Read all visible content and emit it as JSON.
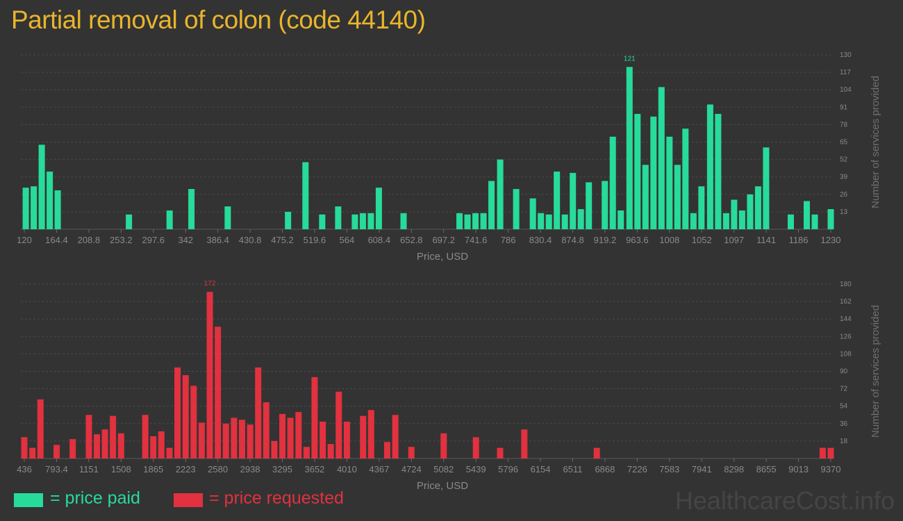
{
  "title": "Partial removal of colon (code 44140)",
  "watermark": "HealthcareCost.info",
  "legend": [
    {
      "label": "= price paid",
      "color": "#27db9b"
    },
    {
      "label": "= price requested",
      "color": "#e2313f"
    }
  ],
  "chart_data": [
    {
      "type": "bar",
      "title": "",
      "xlabel": "Price, USD",
      "ylabel": "Number of services provided",
      "color": "#27db9b",
      "ylim": [
        0,
        130
      ],
      "yticks": [
        "13",
        "26",
        "39",
        "52",
        "65",
        "78",
        "91",
        "104",
        "117",
        "130"
      ],
      "xlim": [
        120,
        1230
      ],
      "xticks": [
        "120",
        "164.4",
        "208.8",
        "253.2",
        "297.6",
        "342",
        "386.4",
        "430.8",
        "475.2",
        "519.6",
        "564",
        "608.4",
        "652.8",
        "697.2",
        "741.6",
        "786",
        "830.4",
        "874.8",
        "919.2",
        "963.6",
        "1008",
        "1052",
        "1097",
        "1141",
        "1186",
        "1230"
      ],
      "peak_label": "121",
      "bars": [
        {
          "x": 122,
          "v": 31
        },
        {
          "x": 133,
          "v": 32
        },
        {
          "x": 144,
          "v": 63
        },
        {
          "x": 155,
          "v": 43
        },
        {
          "x": 166,
          "v": 29
        },
        {
          "x": 264,
          "v": 11
        },
        {
          "x": 320,
          "v": 14
        },
        {
          "x": 350,
          "v": 30
        },
        {
          "x": 400,
          "v": 17
        },
        {
          "x": 483,
          "v": 13
        },
        {
          "x": 507,
          "v": 50
        },
        {
          "x": 530,
          "v": 11
        },
        {
          "x": 552,
          "v": 17
        },
        {
          "x": 575,
          "v": 11
        },
        {
          "x": 586,
          "v": 12
        },
        {
          "x": 597,
          "v": 12
        },
        {
          "x": 608,
          "v": 31
        },
        {
          "x": 642,
          "v": 12
        },
        {
          "x": 719,
          "v": 12
        },
        {
          "x": 730,
          "v": 11
        },
        {
          "x": 741,
          "v": 12
        },
        {
          "x": 752,
          "v": 12
        },
        {
          "x": 763,
          "v": 36
        },
        {
          "x": 775,
          "v": 52
        },
        {
          "x": 797,
          "v": 30
        },
        {
          "x": 820,
          "v": 23
        },
        {
          "x": 831,
          "v": 12
        },
        {
          "x": 842,
          "v": 11
        },
        {
          "x": 853,
          "v": 43
        },
        {
          "x": 864,
          "v": 11
        },
        {
          "x": 875,
          "v": 42
        },
        {
          "x": 886,
          "v": 15
        },
        {
          "x": 897,
          "v": 35
        },
        {
          "x": 919,
          "v": 36
        },
        {
          "x": 930,
          "v": 69
        },
        {
          "x": 941,
          "v": 14
        },
        {
          "x": 953,
          "v": 121
        },
        {
          "x": 964,
          "v": 86
        },
        {
          "x": 975,
          "v": 48
        },
        {
          "x": 986,
          "v": 84
        },
        {
          "x": 997,
          "v": 106
        },
        {
          "x": 1008,
          "v": 69
        },
        {
          "x": 1019,
          "v": 48
        },
        {
          "x": 1030,
          "v": 75
        },
        {
          "x": 1041,
          "v": 12
        },
        {
          "x": 1052,
          "v": 32
        },
        {
          "x": 1064,
          "v": 93
        },
        {
          "x": 1075,
          "v": 86
        },
        {
          "x": 1086,
          "v": 12
        },
        {
          "x": 1097,
          "v": 22
        },
        {
          "x": 1108,
          "v": 14
        },
        {
          "x": 1119,
          "v": 26
        },
        {
          "x": 1130,
          "v": 32
        },
        {
          "x": 1141,
          "v": 61
        },
        {
          "x": 1175,
          "v": 11
        },
        {
          "x": 1197,
          "v": 21
        },
        {
          "x": 1208,
          "v": 11
        },
        {
          "x": 1230,
          "v": 15
        }
      ]
    },
    {
      "type": "bar",
      "title": "",
      "xlabel": "Price, USD",
      "ylabel": "Number of services provided",
      "color": "#e2313f",
      "ylim": [
        0,
        180
      ],
      "yticks": [
        "18",
        "36",
        "54",
        "72",
        "90",
        "108",
        "126",
        "144",
        "162",
        "180"
      ],
      "xlim": [
        436,
        9370
      ],
      "xticks": [
        "436",
        "793.4",
        "1151",
        "1508",
        "1865",
        "2223",
        "2580",
        "2938",
        "3295",
        "3652",
        "4010",
        "4367",
        "4724",
        "5082",
        "5439",
        "5796",
        "6154",
        "6511",
        "6868",
        "7226",
        "7583",
        "7941",
        "8298",
        "8655",
        "9013",
        "9370"
      ],
      "peak_label": "172",
      "bars": [
        {
          "x": 436,
          "v": 22
        },
        {
          "x": 526,
          "v": 11
        },
        {
          "x": 615,
          "v": 61
        },
        {
          "x": 794,
          "v": 14
        },
        {
          "x": 972,
          "v": 20
        },
        {
          "x": 1151,
          "v": 45
        },
        {
          "x": 1240,
          "v": 25
        },
        {
          "x": 1329,
          "v": 30
        },
        {
          "x": 1418,
          "v": 44
        },
        {
          "x": 1508,
          "v": 26
        },
        {
          "x": 1776,
          "v": 45
        },
        {
          "x": 1865,
          "v": 23
        },
        {
          "x": 1954,
          "v": 28
        },
        {
          "x": 2044,
          "v": 11
        },
        {
          "x": 2133,
          "v": 94
        },
        {
          "x": 2223,
          "v": 86
        },
        {
          "x": 2312,
          "v": 75
        },
        {
          "x": 2401,
          "v": 37
        },
        {
          "x": 2491,
          "v": 172
        },
        {
          "x": 2580,
          "v": 136
        },
        {
          "x": 2669,
          "v": 36
        },
        {
          "x": 2759,
          "v": 42
        },
        {
          "x": 2848,
          "v": 40
        },
        {
          "x": 2938,
          "v": 35
        },
        {
          "x": 3027,
          "v": 94
        },
        {
          "x": 3116,
          "v": 58
        },
        {
          "x": 3206,
          "v": 18
        },
        {
          "x": 3295,
          "v": 46
        },
        {
          "x": 3384,
          "v": 42
        },
        {
          "x": 3474,
          "v": 48
        },
        {
          "x": 3563,
          "v": 12
        },
        {
          "x": 3652,
          "v": 84
        },
        {
          "x": 3742,
          "v": 38
        },
        {
          "x": 3831,
          "v": 15
        },
        {
          "x": 3920,
          "v": 69
        },
        {
          "x": 4010,
          "v": 38
        },
        {
          "x": 4189,
          "v": 44
        },
        {
          "x": 4278,
          "v": 50
        },
        {
          "x": 4456,
          "v": 17
        },
        {
          "x": 4546,
          "v": 45
        },
        {
          "x": 4724,
          "v": 12
        },
        {
          "x": 5082,
          "v": 26
        },
        {
          "x": 5439,
          "v": 22
        },
        {
          "x": 5707,
          "v": 11
        },
        {
          "x": 5975,
          "v": 30
        },
        {
          "x": 6778,
          "v": 11
        },
        {
          "x": 9281,
          "v": 11
        },
        {
          "x": 9370,
          "v": 11
        }
      ]
    }
  ]
}
